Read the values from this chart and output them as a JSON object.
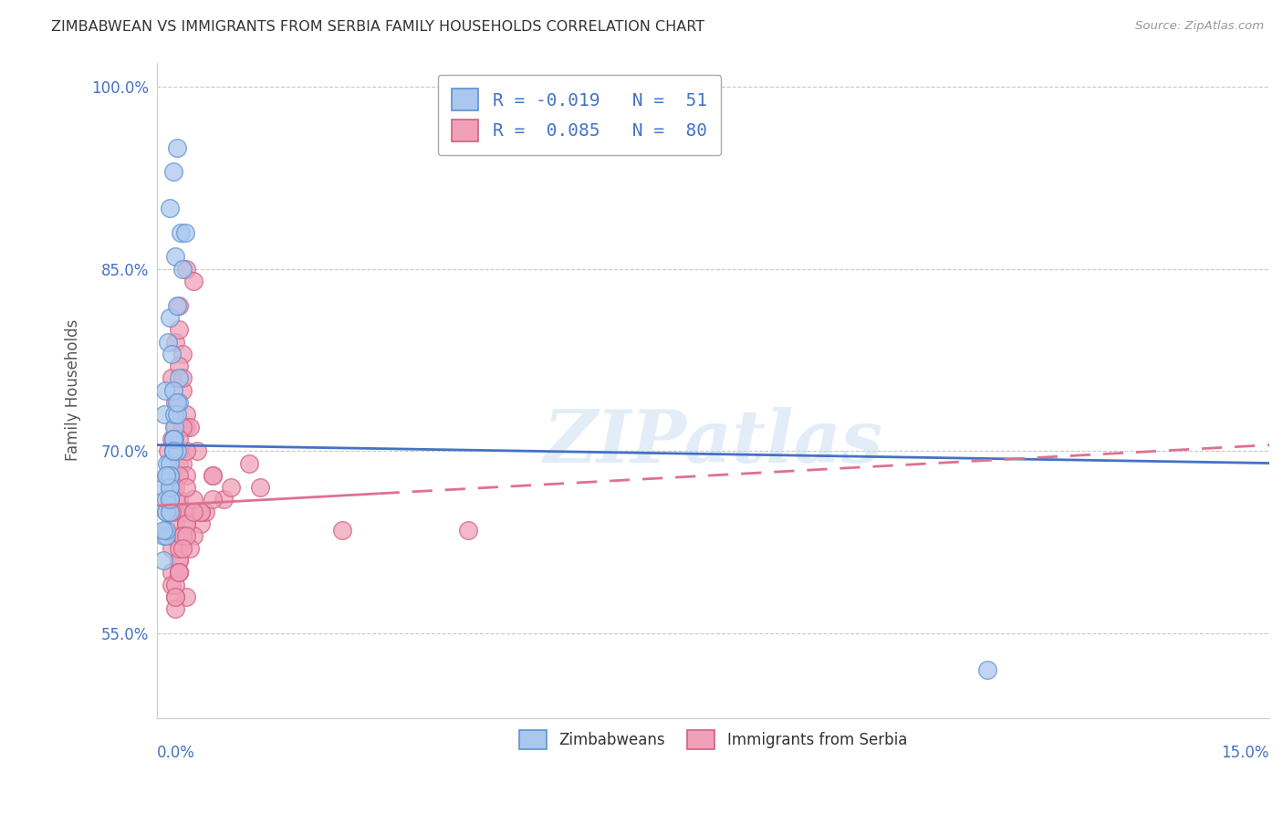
{
  "title": "ZIMBABWEAN VS IMMIGRANTS FROM SERBIA FAMILY HOUSEHOLDS CORRELATION CHART",
  "source": "Source: ZipAtlas.com",
  "ylabel": "Family Households",
  "xlim": [
    0.0,
    15.0
  ],
  "ylim": [
    48.0,
    102.0
  ],
  "yticks": [
    55.0,
    70.0,
    85.0,
    100.0
  ],
  "ytick_labels": [
    "55.0%",
    "70.0%",
    "85.0%",
    "100.0%"
  ],
  "legend_labels": [
    "Zimbabweans",
    "Immigrants from Serbia"
  ],
  "blue_color": "#aac8ee",
  "pink_color": "#f0a0b8",
  "blue_edge_color": "#6090d0",
  "pink_edge_color": "#d06080",
  "blue_line_color": "#4472c4",
  "pink_line_color": "#e07090",
  "grid_color": "#c8c8c8",
  "background_color": "#ffffff",
  "zimbabwean_x": [
    0.15,
    0.22,
    0.18,
    0.28,
    0.32,
    0.25,
    0.12,
    0.2,
    0.1,
    0.24,
    0.3,
    0.18,
    0.14,
    0.22,
    0.35,
    0.28,
    0.38,
    0.16,
    0.14,
    0.24,
    0.3,
    0.18,
    0.13,
    0.09,
    0.18,
    0.24,
    0.14,
    0.18,
    0.09,
    0.22,
    0.13,
    0.18,
    0.28,
    0.22,
    0.18,
    0.13,
    0.22,
    0.18,
    0.13,
    0.09,
    0.28,
    0.18,
    0.22,
    0.13,
    0.18,
    0.09,
    0.22,
    0.28,
    11.2,
    0.13,
    0.18
  ],
  "zimbabwean_y": [
    79.0,
    93.0,
    90.0,
    95.0,
    88.0,
    86.0,
    75.0,
    78.0,
    73.0,
    71.0,
    76.0,
    81.0,
    68.0,
    70.0,
    85.0,
    82.0,
    88.0,
    66.0,
    69.0,
    72.0,
    74.0,
    67.0,
    65.0,
    63.0,
    69.0,
    73.0,
    68.0,
    66.0,
    67.0,
    71.0,
    65.0,
    68.0,
    73.0,
    70.0,
    66.0,
    63.0,
    75.0,
    68.0,
    66.0,
    61.0,
    70.0,
    65.0,
    71.0,
    63.5,
    67.0,
    63.5,
    70.0,
    74.0,
    52.0,
    68.0,
    66.0
  ],
  "serbia_x": [
    0.2,
    0.3,
    0.25,
    0.35,
    0.4,
    0.3,
    0.25,
    0.35,
    0.15,
    0.2,
    0.4,
    0.3,
    0.25,
    0.2,
    0.3,
    0.35,
    0.5,
    0.25,
    0.2,
    0.3,
    0.4,
    0.6,
    0.25,
    0.2,
    0.3,
    0.35,
    0.75,
    0.45,
    0.25,
    0.3,
    0.4,
    0.55,
    0.9,
    1.0,
    1.25,
    0.65,
    0.35,
    0.25,
    0.3,
    0.4,
    1.4,
    0.5,
    0.3,
    0.25,
    0.2,
    0.35,
    0.4,
    0.25,
    0.3,
    0.2,
    0.35,
    0.3,
    0.6,
    0.75,
    0.5,
    2.5,
    4.2,
    0.2,
    0.25,
    0.3,
    0.4,
    0.25,
    0.3,
    0.2,
    0.35,
    0.5,
    0.4,
    0.3,
    0.6,
    0.25,
    0.35,
    0.4,
    0.5,
    0.45,
    0.3,
    0.4,
    0.25,
    0.75,
    0.35,
    0.3
  ],
  "serbia_y": [
    76.0,
    82.0,
    79.0,
    75.0,
    85.0,
    80.0,
    72.0,
    78.0,
    70.0,
    68.0,
    73.0,
    77.0,
    74.0,
    71.0,
    69.0,
    76.0,
    84.0,
    65.0,
    67.0,
    70.0,
    72.0,
    64.0,
    66.0,
    63.0,
    66.0,
    69.0,
    68.0,
    72.0,
    65.0,
    63.0,
    68.0,
    70.0,
    66.0,
    67.0,
    69.0,
    65.0,
    72.0,
    65.0,
    63.0,
    58.0,
    67.0,
    63.0,
    68.0,
    64.0,
    62.0,
    65.0,
    70.0,
    67.0,
    71.0,
    65.0,
    63.0,
    61.0,
    65.0,
    68.0,
    65.0,
    63.5,
    63.5,
    60.0,
    58.0,
    61.0,
    64.0,
    57.0,
    62.0,
    59.0,
    63.0,
    66.0,
    64.0,
    60.0,
    65.0,
    59.0,
    63.0,
    67.0,
    65.0,
    62.0,
    60.0,
    63.0,
    58.0,
    66.0,
    62.0,
    60.0
  ],
  "zim_trend_x0": 0.0,
  "zim_trend_y0": 70.5,
  "zim_trend_x1": 15.0,
  "zim_trend_y1": 69.0,
  "ser_trend_x0": 0.0,
  "ser_trend_y0": 65.5,
  "ser_trend_x1": 15.0,
  "ser_trend_y1": 70.5
}
